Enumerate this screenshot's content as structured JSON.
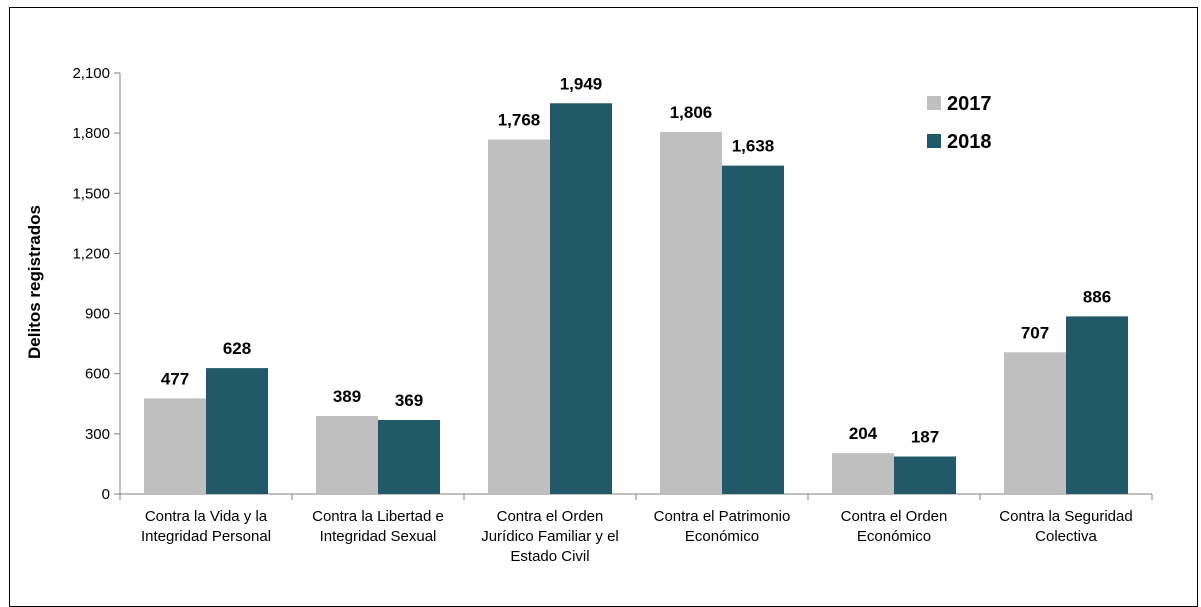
{
  "chart_data": {
    "type": "bar",
    "ylabel": "Delitos registrados",
    "ylim": [
      0,
      2100
    ],
    "yticks": [
      "0",
      "300",
      "600",
      "900",
      "1,200",
      "1,500",
      "1,800",
      "2,100"
    ],
    "grid": false,
    "legend_position": "top-right",
    "categories": [
      [
        "Contra la Vida y la",
        "Integridad Personal"
      ],
      [
        "Contra la Libertad e",
        "Integridad Sexual"
      ],
      [
        "Contra el Orden",
        "Jurídico Familiar y el",
        "Estado Civil"
      ],
      [
        "Contra el Patrimonio",
        "Económico"
      ],
      [
        "Contra el Orden",
        "Económico"
      ],
      [
        "Contra la Seguridad",
        "Colectiva"
      ]
    ],
    "series": [
      {
        "name": "2017",
        "color": "#bfbfbf",
        "values": [
          477,
          389,
          1768,
          1806,
          204,
          707
        ],
        "labels": [
          "477",
          "389",
          "1,768",
          "1,806",
          "204",
          "707"
        ]
      },
      {
        "name": "2018",
        "color": "#215968",
        "values": [
          628,
          369,
          1949,
          1638,
          187,
          886
        ],
        "labels": [
          "628",
          "369",
          "1,949",
          "1,638",
          "187",
          "886"
        ]
      }
    ]
  }
}
